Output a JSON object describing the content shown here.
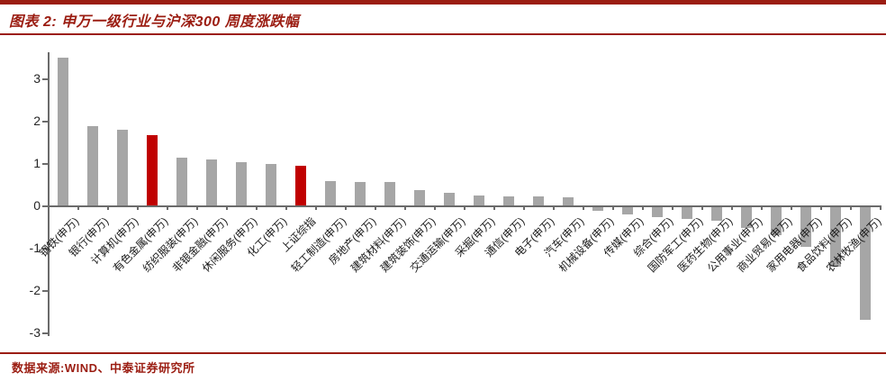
{
  "header": {
    "title": "图表 2: 申万一级行业与沪深300 周度涨跌幅"
  },
  "footer": {
    "source": "数据来源:WIND、中泰证券研究所"
  },
  "colors": {
    "brand_dark_red": "#9B1D12",
    "bar_gray": "#A6A6A6",
    "bar_highlight_red": "#C00000",
    "axis_gray": "#6b6b6b"
  },
  "chart_data": {
    "type": "bar",
    "title": "申万一级行业与沪深300 周度涨跌幅",
    "xlabel": "",
    "ylabel": "",
    "grid": false,
    "legend": false,
    "ylim": [
      -3,
      3.6
    ],
    "y_ticks": [
      3,
      2,
      1,
      0,
      -1,
      -2,
      -3
    ],
    "categories": [
      "钢铁(申万)",
      "银行(申万)",
      "计算机(申万)",
      "有色金属(申万)",
      "纺织服装(申万)",
      "非银金融(申万)",
      "休闲服务(申万)",
      "化工(申万)",
      "上证综指",
      "轻工制造(申万)",
      "房地产(申万)",
      "建筑材料(申万)",
      "建筑装饰(申万)",
      "交通运输(申万)",
      "采掘(申万)",
      "通信(申万)",
      "电子(申万)",
      "汽车(申万)",
      "机械设备(申万)",
      "传媒(申万)",
      "综合(申万)",
      "国防军工(申万)",
      "医药生物(申万)",
      "公用事业(申万)",
      "商业贸易(申万)",
      "家用电器(申万)",
      "食品饮料(申万)",
      "农林牧渔(申万)"
    ],
    "values": [
      3.5,
      1.88,
      1.79,
      1.66,
      1.13,
      1.08,
      1.03,
      0.98,
      0.94,
      0.57,
      0.56,
      0.55,
      0.36,
      0.3,
      0.24,
      0.22,
      0.21,
      0.19,
      -0.09,
      -0.18,
      -0.25,
      -0.28,
      -0.33,
      -0.5,
      -0.67,
      -0.95,
      -1.42,
      -2.66
    ],
    "highlighted_categories": [
      "有色金属(申万)",
      "上证综指"
    ],
    "highlight_indices": [
      3,
      8
    ]
  }
}
